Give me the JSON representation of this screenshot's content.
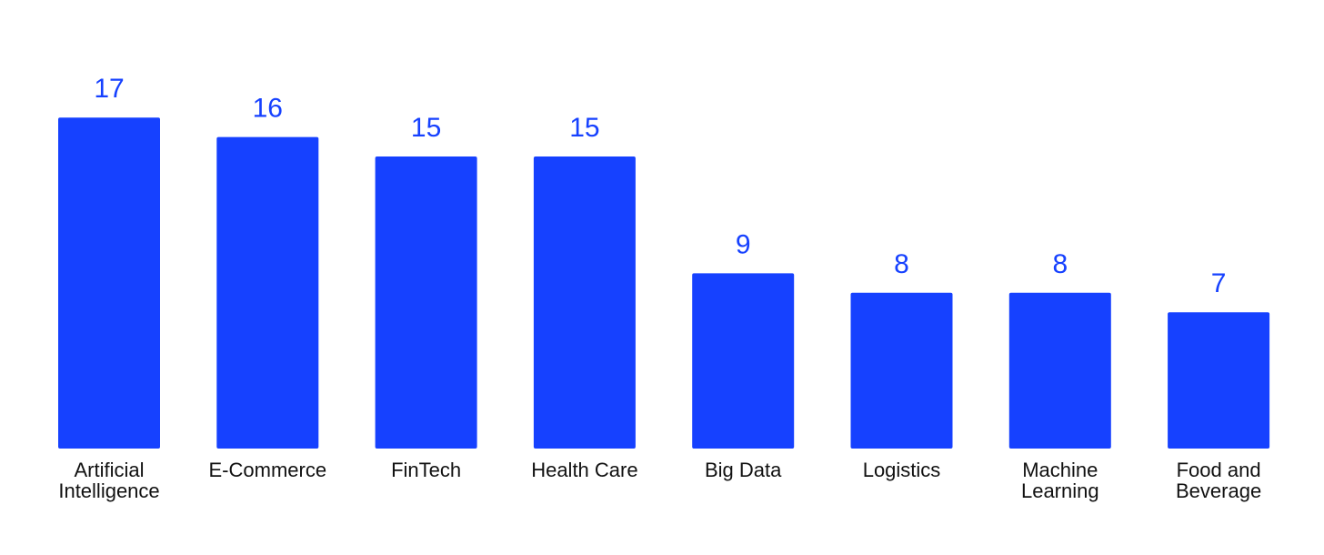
{
  "colors": {
    "bar": "#1641FF",
    "value_label": "#1641FF",
    "category_label": "#111111",
    "background": "#FFFFFF"
  },
  "chart_data": {
    "type": "bar",
    "title": "",
    "xlabel": "",
    "ylabel": "",
    "ylim": [
      0,
      17
    ],
    "grid": false,
    "legend": "none",
    "categories": [
      [
        "Artificial",
        "Intelligence"
      ],
      [
        "E-Commerce"
      ],
      [
        "FinTech"
      ],
      [
        "Health Care"
      ],
      [
        "Big Data"
      ],
      [
        "Logistics"
      ],
      [
        "Machine",
        "Learning"
      ],
      [
        "Food and",
        "Beverage"
      ]
    ],
    "values": [
      17,
      16,
      15,
      15,
      9,
      8,
      8,
      7
    ]
  }
}
